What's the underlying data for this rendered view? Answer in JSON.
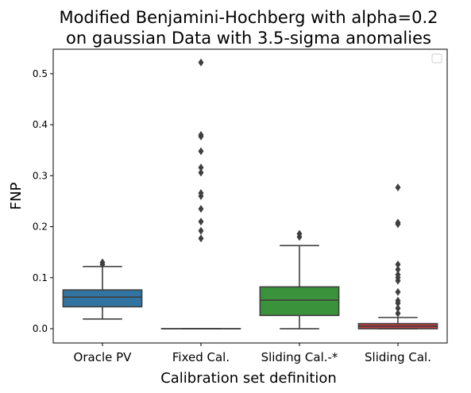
{
  "chart_data": {
    "type": "box",
    "title_line1": "Modified Benjamini-Hochberg with alpha=0.2",
    "title_line2": "on gaussian Data with 3.5-sigma anomalies",
    "xlabel": "Calibration set definition",
    "ylabel": "FNP",
    "ylim": [
      -0.028,
      0.548
    ],
    "yticks": [
      0.0,
      0.1,
      0.2,
      0.3,
      0.4,
      0.5
    ],
    "ytick_labels": [
      "0.0",
      "0.1",
      "0.2",
      "0.3",
      "0.4",
      "0.5"
    ],
    "legend": {
      "placement": "top-right",
      "entries": []
    },
    "categories": [
      "Oracle PV",
      "Fixed Cal.",
      "Sliding Cal.-*",
      "Sliding Cal."
    ],
    "boxes": [
      {
        "category": "Oracle PV",
        "color": "#3274a1",
        "whisker_low": 0.019,
        "q1": 0.043,
        "median": 0.062,
        "q3": 0.076,
        "whisker_high": 0.122,
        "outliers": [
          0.126,
          0.13
        ]
      },
      {
        "category": "Fixed Cal.",
        "color": "#e1812c",
        "whisker_low": 0.0,
        "q1": 0.0,
        "median": 0.0,
        "q3": 0.0,
        "whisker_high": 0.0,
        "outliers": [
          0.177,
          0.192,
          0.21,
          0.235,
          0.26,
          0.266,
          0.306,
          0.316,
          0.348,
          0.377,
          0.38,
          0.522
        ]
      },
      {
        "category": "Sliding Cal.-*",
        "color": "#3a923a",
        "whisker_low": 0.0,
        "q1": 0.026,
        "median": 0.056,
        "q3": 0.082,
        "whisker_high": 0.163,
        "outliers": [
          0.18,
          0.186
        ]
      },
      {
        "category": "Sliding Cal.",
        "color": "#c03d3e",
        "whisker_low": 0.0,
        "q1": 0.0,
        "median": 0.005,
        "q3": 0.01,
        "whisker_high": 0.022,
        "outliers": [
          0.03,
          0.04,
          0.05,
          0.055,
          0.072,
          0.094,
          0.1,
          0.106,
          0.116,
          0.126,
          0.205,
          0.208,
          0.277
        ]
      }
    ]
  }
}
